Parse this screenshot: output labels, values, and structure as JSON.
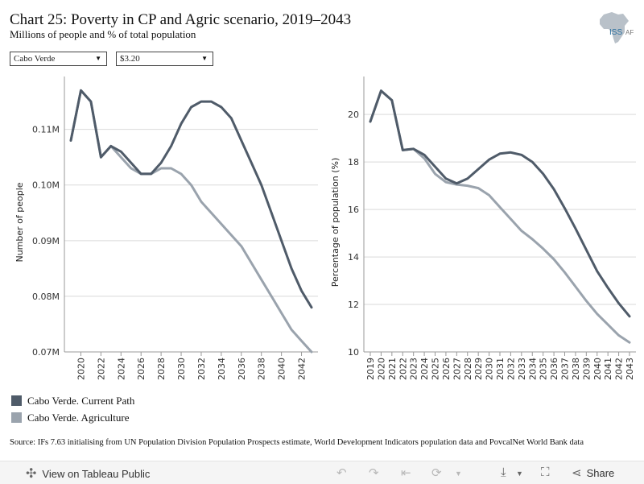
{
  "title": "Chart 25: Poverty in CP and Agric scenario, 2019–2043",
  "subtitle": "Millions of people and % of total population",
  "filters": {
    "country": "Cabo Verde",
    "poverty_line": "$3.20"
  },
  "logo": {
    "text": "ISS",
    "text2": "AF"
  },
  "colors": {
    "current_path": "#4f5b69",
    "agriculture": "#9aa3ad",
    "grid": "#d9d9d9",
    "axis": "#999999"
  },
  "chart_data": [
    {
      "type": "line",
      "ylabel": "Number of people",
      "xlabel": "",
      "x": [
        2019,
        2020,
        2021,
        2022,
        2023,
        2024,
        2025,
        2026,
        2027,
        2028,
        2029,
        2030,
        2031,
        2032,
        2033,
        2034,
        2035,
        2036,
        2037,
        2038,
        2039,
        2040,
        2041,
        2042,
        2043
      ],
      "x_tick_labels": [
        "2020",
        "2022",
        "2024",
        "2026",
        "2028",
        "2030",
        "2032",
        "2034",
        "2036",
        "2038",
        "2040",
        "2042"
      ],
      "y_ticks": [
        {
          "value": 0.07,
          "label": "0.07M"
        },
        {
          "value": 0.08,
          "label": "0.08M"
        },
        {
          "value": 0.09,
          "label": "0.09M"
        },
        {
          "value": 0.1,
          "label": "0.10M"
        },
        {
          "value": 0.11,
          "label": "0.11M"
        }
      ],
      "ylim": [
        0.07,
        0.1195
      ],
      "grid": true,
      "series": [
        {
          "name": "Cabo Verde. Current Path",
          "color_key": "current_path",
          "values": [
            0.108,
            0.117,
            0.115,
            0.105,
            0.107,
            0.106,
            0.104,
            0.102,
            0.102,
            0.104,
            0.107,
            0.111,
            0.114,
            0.115,
            0.115,
            0.114,
            0.112,
            0.108,
            0.104,
            0.1,
            0.095,
            0.09,
            0.085,
            0.081,
            0.078
          ]
        },
        {
          "name": "Cabo Verde. Agriculture",
          "color_key": "agriculture",
          "values": [
            0.108,
            0.117,
            0.115,
            0.105,
            0.107,
            0.105,
            0.103,
            0.102,
            0.102,
            0.103,
            0.103,
            0.102,
            0.1,
            0.097,
            0.095,
            0.093,
            0.091,
            0.089,
            0.086,
            0.083,
            0.08,
            0.077,
            0.074,
            0.072,
            0.07
          ]
        }
      ]
    },
    {
      "type": "line",
      "ylabel": "Percentage of population (%)",
      "xlabel": "",
      "x": [
        2019,
        2020,
        2021,
        2022,
        2023,
        2024,
        2025,
        2026,
        2027,
        2028,
        2029,
        2030,
        2031,
        2032,
        2033,
        2034,
        2035,
        2036,
        2037,
        2038,
        2039,
        2040,
        2041,
        2042,
        2043
      ],
      "x_tick_labels": [
        "2019",
        "2020",
        "2021",
        "2022",
        "2023",
        "2024",
        "2025",
        "2026",
        "2027",
        "2028",
        "2029",
        "2030",
        "2031",
        "2032",
        "2033",
        "2034",
        "2035",
        "2036",
        "2037",
        "2038",
        "2039",
        "2040",
        "2041",
        "2042",
        "2043"
      ],
      "y_ticks": [
        {
          "value": 10,
          "label": "10"
        },
        {
          "value": 12,
          "label": "12"
        },
        {
          "value": 14,
          "label": "14"
        },
        {
          "value": 16,
          "label": "16"
        },
        {
          "value": 18,
          "label": "18"
        },
        {
          "value": 20,
          "label": "20"
        }
      ],
      "ylim": [
        10,
        21.6
      ],
      "grid": true,
      "series": [
        {
          "name": "Cabo Verde. Current Path",
          "color_key": "current_path",
          "values": [
            19.7,
            21.0,
            20.6,
            18.5,
            18.55,
            18.3,
            17.8,
            17.3,
            17.1,
            17.3,
            17.7,
            18.1,
            18.35,
            18.4,
            18.3,
            18.0,
            17.5,
            16.85,
            16.05,
            15.2,
            14.3,
            13.4,
            12.7,
            12.05,
            11.5
          ]
        },
        {
          "name": "Cabo Verde. Agriculture",
          "color_key": "agriculture",
          "values": [
            19.7,
            21.0,
            20.6,
            18.5,
            18.55,
            18.15,
            17.5,
            17.15,
            17.05,
            17.0,
            16.9,
            16.6,
            16.1,
            15.6,
            15.1,
            14.75,
            14.35,
            13.9,
            13.35,
            12.75,
            12.15,
            11.6,
            11.15,
            10.7,
            10.4
          ]
        }
      ]
    }
  ],
  "legend": {
    "items": [
      {
        "label": "Cabo Verde. Current Path",
        "color_key": "current_path"
      },
      {
        "label": "Cabo Verde. Agriculture",
        "color_key": "agriculture"
      }
    ]
  },
  "source": "Source: IFs 7.63 initialising from UN Population Division Population Prospects estimate, World Development Indicators population data and PovcalNet World Bank data",
  "toolbar": {
    "view_label": "View on Tableau Public",
    "share_label": "Share",
    "icons": [
      "tableau-icon",
      "undo-icon",
      "redo-icon",
      "revert-icon",
      "refresh-icon",
      "download-icon",
      "fullscreen-icon",
      "share-icon"
    ]
  }
}
